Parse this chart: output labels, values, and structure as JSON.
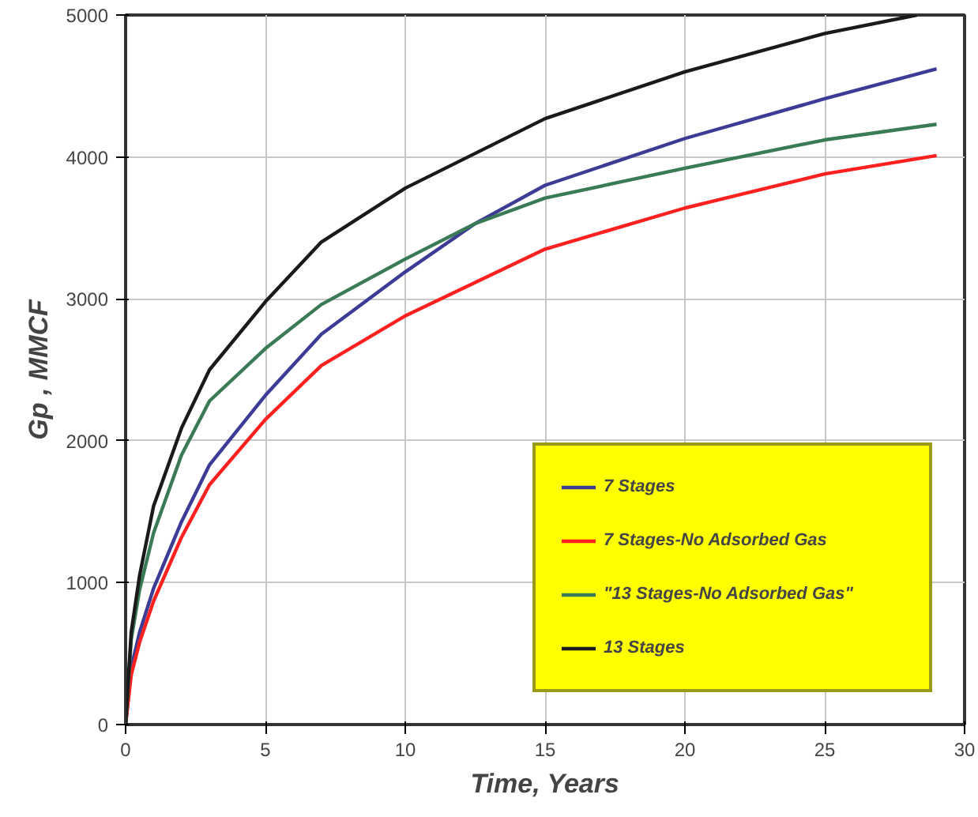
{
  "chart_data": {
    "type": "line",
    "xlabel": "Time, Years",
    "ylabel": "Gp , MMCF",
    "xlim": [
      0,
      30
    ],
    "ylim": [
      0,
      5000
    ],
    "xticks": [
      0,
      5,
      10,
      15,
      20,
      25,
      30
    ],
    "yticks": [
      0,
      1000,
      2000,
      3000,
      4000,
      5000
    ],
    "grid": true,
    "legend": "bottom right",
    "marker": "none",
    "line_style": "solid",
    "series": [
      {
        "name": "7 Stages",
        "color": "#3c3c96",
        "x": [
          0,
          0.2,
          0.5,
          1,
          2,
          3,
          5,
          7,
          10,
          12.5,
          15,
          20,
          25,
          29
        ],
        "values": [
          0,
          400,
          650,
          960,
          1430,
          1830,
          2320,
          2750,
          3190,
          3530,
          3800,
          4130,
          4410,
          4620
        ]
      },
      {
        "name": "7 Stages-No Adsorbed Gas",
        "color": "#ff2020",
        "x": [
          0,
          0.2,
          0.5,
          1,
          2,
          3,
          5,
          7,
          10,
          15,
          20,
          25,
          29
        ],
        "values": [
          0,
          350,
          580,
          870,
          1320,
          1690,
          2150,
          2530,
          2880,
          3350,
          3640,
          3880,
          4010
        ]
      },
      {
        "name": "\"13 Stages-No Adsorbed Gas\"",
        "color": "#3a7a55",
        "x": [
          0,
          0.2,
          0.5,
          1,
          2,
          3,
          5,
          7,
          10,
          12.5,
          15,
          20,
          25,
          29
        ],
        "values": [
          0,
          600,
          950,
          1350,
          1900,
          2280,
          2650,
          2960,
          3280,
          3530,
          3710,
          3920,
          4120,
          4230
        ]
      },
      {
        "name": "13 Stages",
        "color": "#1a1a1a",
        "x": [
          0,
          0.2,
          0.5,
          1,
          2,
          3,
          5,
          7,
          10,
          15,
          20,
          25,
          28.3
        ],
        "values": [
          0,
          650,
          1050,
          1540,
          2090,
          2500,
          2980,
          3400,
          3780,
          4270,
          4600,
          4870,
          5000
        ]
      }
    ]
  }
}
